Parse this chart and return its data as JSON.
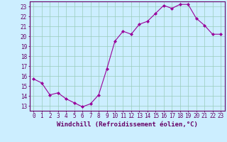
{
  "x": [
    0,
    1,
    2,
    3,
    4,
    5,
    6,
    7,
    8,
    9,
    10,
    11,
    12,
    13,
    14,
    15,
    16,
    17,
    18,
    19,
    20,
    21,
    22,
    23
  ],
  "y": [
    15.7,
    15.3,
    14.1,
    14.3,
    13.7,
    13.3,
    12.9,
    13.2,
    14.1,
    16.7,
    19.5,
    20.5,
    20.2,
    21.2,
    21.5,
    22.3,
    23.1,
    22.8,
    23.2,
    23.2,
    21.8,
    21.1,
    20.2,
    20.2
  ],
  "xlabel": "Windchill (Refroidissement éolien,°C)",
  "xlim": [
    -0.5,
    23.5
  ],
  "ylim": [
    12.5,
    23.5
  ],
  "yticks": [
    13,
    14,
    15,
    16,
    17,
    18,
    19,
    20,
    21,
    22,
    23
  ],
  "xticks": [
    0,
    1,
    2,
    3,
    4,
    5,
    6,
    7,
    8,
    9,
    10,
    11,
    12,
    13,
    14,
    15,
    16,
    17,
    18,
    19,
    20,
    21,
    22,
    23
  ],
  "line_color": "#990099",
  "marker": "D",
  "marker_size": 2,
  "bg_color": "#cceeff",
  "grid_color": "#99ccbb",
  "axis_color": "#660066",
  "tick_label_color": "#660066",
  "xlabel_color": "#660066",
  "tick_fontsize": 5.5,
  "xlabel_fontsize": 6.5
}
